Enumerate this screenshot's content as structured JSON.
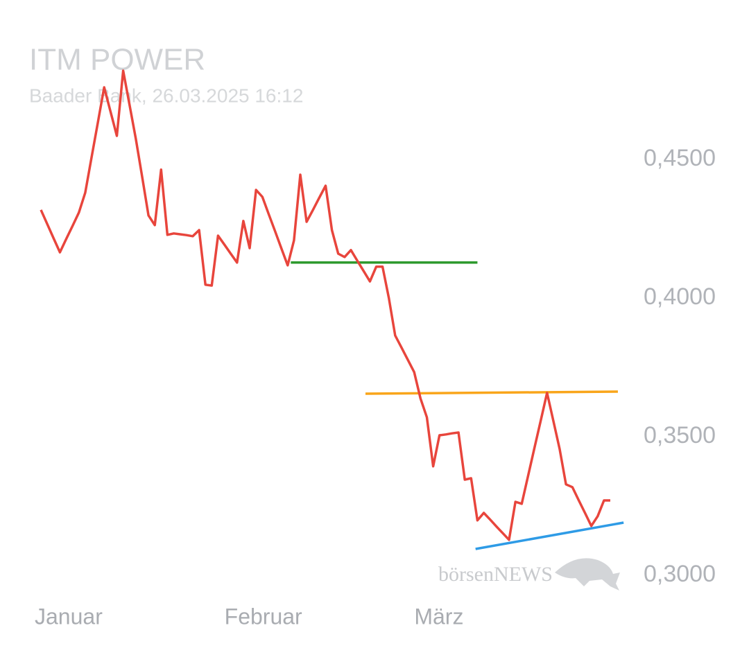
{
  "chart_data": {
    "type": "line",
    "title": "ITM POWER",
    "subtitle": "Baader Bank, 26.03.2025 16:12",
    "watermark": "börsenNEWS",
    "categories": [
      "Januar",
      null,
      null,
      null,
      null,
      null,
      null,
      null,
      null,
      null,
      null,
      null,
      null,
      null,
      null,
      null,
      null,
      null,
      null,
      null,
      null,
      null,
      null,
      null,
      null,
      null,
      null,
      null,
      null,
      null,
      "Februar",
      null,
      null,
      null,
      null,
      null,
      null,
      null,
      null,
      null,
      null,
      null,
      null,
      null,
      null,
      null,
      null,
      null,
      null,
      null,
      null,
      null,
      null,
      null,
      null,
      null,
      null,
      null,
      null,
      null,
      "März",
      null,
      null,
      null,
      null,
      null,
      null,
      null,
      null,
      null,
      null,
      null,
      null,
      null,
      null,
      null,
      null,
      null,
      null,
      null,
      null,
      null,
      null,
      null,
      null,
      null,
      null,
      null,
      null,
      null,
      null
    ],
    "values": [
      0.4318,
      0.4267,
      0.4216,
      0.4165,
      0.4213,
      0.426,
      0.4308,
      0.438,
      0.4507,
      0.4633,
      0.476,
      0.4673,
      0.4585,
      0.482,
      0.4698,
      0.4575,
      0.4437,
      0.4298,
      0.4263,
      0.4463,
      0.4228,
      0.4233,
      0.423,
      0.4227,
      0.4223,
      0.4245,
      0.4048,
      0.4045,
      0.4225,
      0.4193,
      0.416,
      0.4128,
      0.4278,
      0.418,
      0.439,
      0.4365,
      0.4303,
      0.4242,
      0.418,
      0.4118,
      0.4208,
      0.4445,
      0.4275,
      0.4318,
      0.4362,
      0.4405,
      0.4245,
      0.416,
      0.4148,
      0.4173,
      0.4135,
      0.4098,
      0.406,
      0.4113,
      0.4113,
      0.4,
      0.3865,
      0.3821,
      0.3777,
      0.3733,
      0.3638,
      0.357,
      0.3393,
      0.3505,
      0.3508,
      0.3512,
      0.3515,
      0.3345,
      0.335,
      0.3198,
      0.3225,
      0.3201,
      0.3176,
      0.3152,
      0.3128,
      0.3265,
      0.3258,
      0.3358,
      0.3458,
      0.3558,
      0.3658,
      0.3557,
      0.3455,
      0.3328,
      0.3318,
      0.3271,
      0.3225,
      0.3178,
      0.3213,
      0.327,
      0.327
    ],
    "color": "#e8453c",
    "trendlines": [
      {
        "color": "#2e9a2e",
        "x": [
          39.5,
          69.0
        ],
        "y": [
          0.4128,
          0.4128
        ]
      },
      {
        "color": "#f9a51a",
        "x": [
          51.3,
          91.2
        ],
        "y": [
          0.3655,
          0.36625
        ]
      },
      {
        "color": "#2e9be6",
        "x": [
          68.7,
          92.1
        ],
        "y": [
          0.3095,
          0.319
        ]
      }
    ],
    "xlim": [
      0,
      90
    ],
    "ylim": [
      0.28,
      0.49
    ],
    "yticks": [
      {
        "value": 0.45,
        "label": "0,4500"
      },
      {
        "value": 0.4,
        "label": "0,4000"
      },
      {
        "value": 0.35,
        "label": "0,3500"
      },
      {
        "value": 0.3,
        "label": "0,3000"
      }
    ]
  }
}
